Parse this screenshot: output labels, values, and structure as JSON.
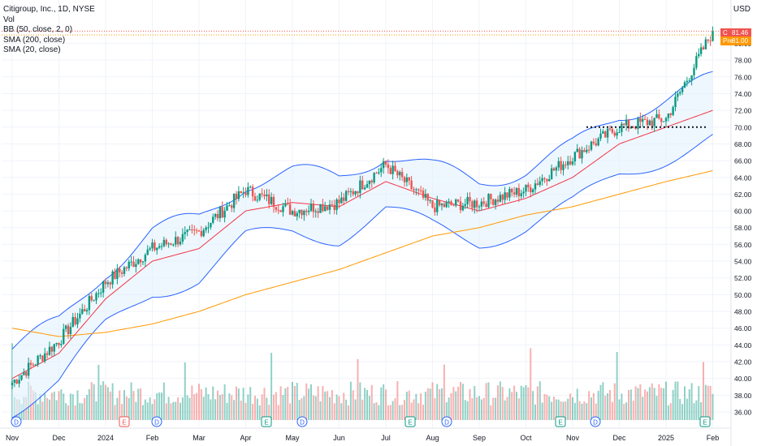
{
  "header": {
    "symbol": "Citigroup, Inc., 1D, NYSE",
    "indicators": [
      "Vol",
      "BB (50, close, 2, 0)",
      "SMA (200, close)",
      "SMA (20, close)"
    ],
    "currency": "USD"
  },
  "price_tags": [
    {
      "key": "C",
      "value": "81.46",
      "color": "#ef5350"
    },
    {
      "key": "Pre",
      "value": "81.00",
      "color": "#ff9800"
    }
  ],
  "colors": {
    "up": "#089981",
    "down": "#ef5350",
    "bb": "#2962ff",
    "bb_fill": "#e3f2fd",
    "sma200": "#ff9800",
    "sma20": "#f23645",
    "grid": "#f0f3fa"
  },
  "chart_data": {
    "type": "candlestick",
    "title": "Citigroup, Inc., 1D, NYSE",
    "y_axis_ticks": [
      "36.00",
      "38.00",
      "40.00",
      "42.00",
      "44.00",
      "46.00",
      "48.00",
      "50.00",
      "52.00",
      "54.00",
      "56.00",
      "58.00",
      "60.00",
      "62.00",
      "64.00",
      "66.00",
      "68.00",
      "70.00",
      "72.00",
      "74.00",
      "76.00",
      "78.00",
      "80.00"
    ],
    "x_axis_ticks": [
      "Nov",
      "Dec",
      "2024",
      "Feb",
      "Mar",
      "Apr",
      "May",
      "Jun",
      "Jul",
      "Aug",
      "Sep",
      "Oct",
      "Nov",
      "Dec",
      "2025",
      "Feb"
    ],
    "ylim": [
      34.5,
      83
    ],
    "key_levels": {
      "support": 70.0,
      "last_close": 81.46,
      "pre_market": 81.0
    },
    "series": [
      {
        "name": "Close",
        "x": [
          "Nov",
          "Dec",
          "2024",
          "Feb",
          "Mar",
          "Apr",
          "May",
          "Jun",
          "Jul",
          "Aug",
          "Sep",
          "Oct",
          "Nov",
          "Dec",
          "2025",
          "Feb"
        ],
        "values": [
          39.5,
          44.5,
          51.5,
          55.5,
          57.5,
          62.5,
          60.0,
          61.0,
          65.5,
          60.5,
          61.0,
          62.5,
          66.5,
          70.0,
          71.0,
          81.46
        ]
      },
      {
        "name": "SMA (200, close)",
        "values": [
          46.0,
          45.0,
          45.5,
          46.5,
          48.0,
          50.0,
          51.5,
          53.0,
          55.0,
          57.0,
          58.0,
          59.5,
          60.5,
          62.0,
          63.5,
          64.8
        ]
      },
      {
        "name": "SMA (20, close)",
        "values": [
          40.0,
          43.0,
          49.5,
          54.0,
          55.5,
          60.0,
          61.0,
          60.5,
          63.5,
          61.5,
          60.0,
          61.5,
          64.0,
          68.0,
          70.0,
          72.0
        ]
      }
    ],
    "event_markers": [
      {
        "x": "Nov",
        "label": "D"
      },
      {
        "x": "2024",
        "label": "E"
      },
      {
        "x": "Feb",
        "label": "D"
      },
      {
        "x": "Apr",
        "label": "E"
      },
      {
        "x": "May",
        "label": "D"
      },
      {
        "x": "Jul",
        "label": "E"
      },
      {
        "x": "Aug",
        "label": "D"
      },
      {
        "x": "Oct",
        "label": "E"
      },
      {
        "x": "Nov",
        "label": "D"
      },
      {
        "x": "2025",
        "label": "E"
      }
    ]
  }
}
